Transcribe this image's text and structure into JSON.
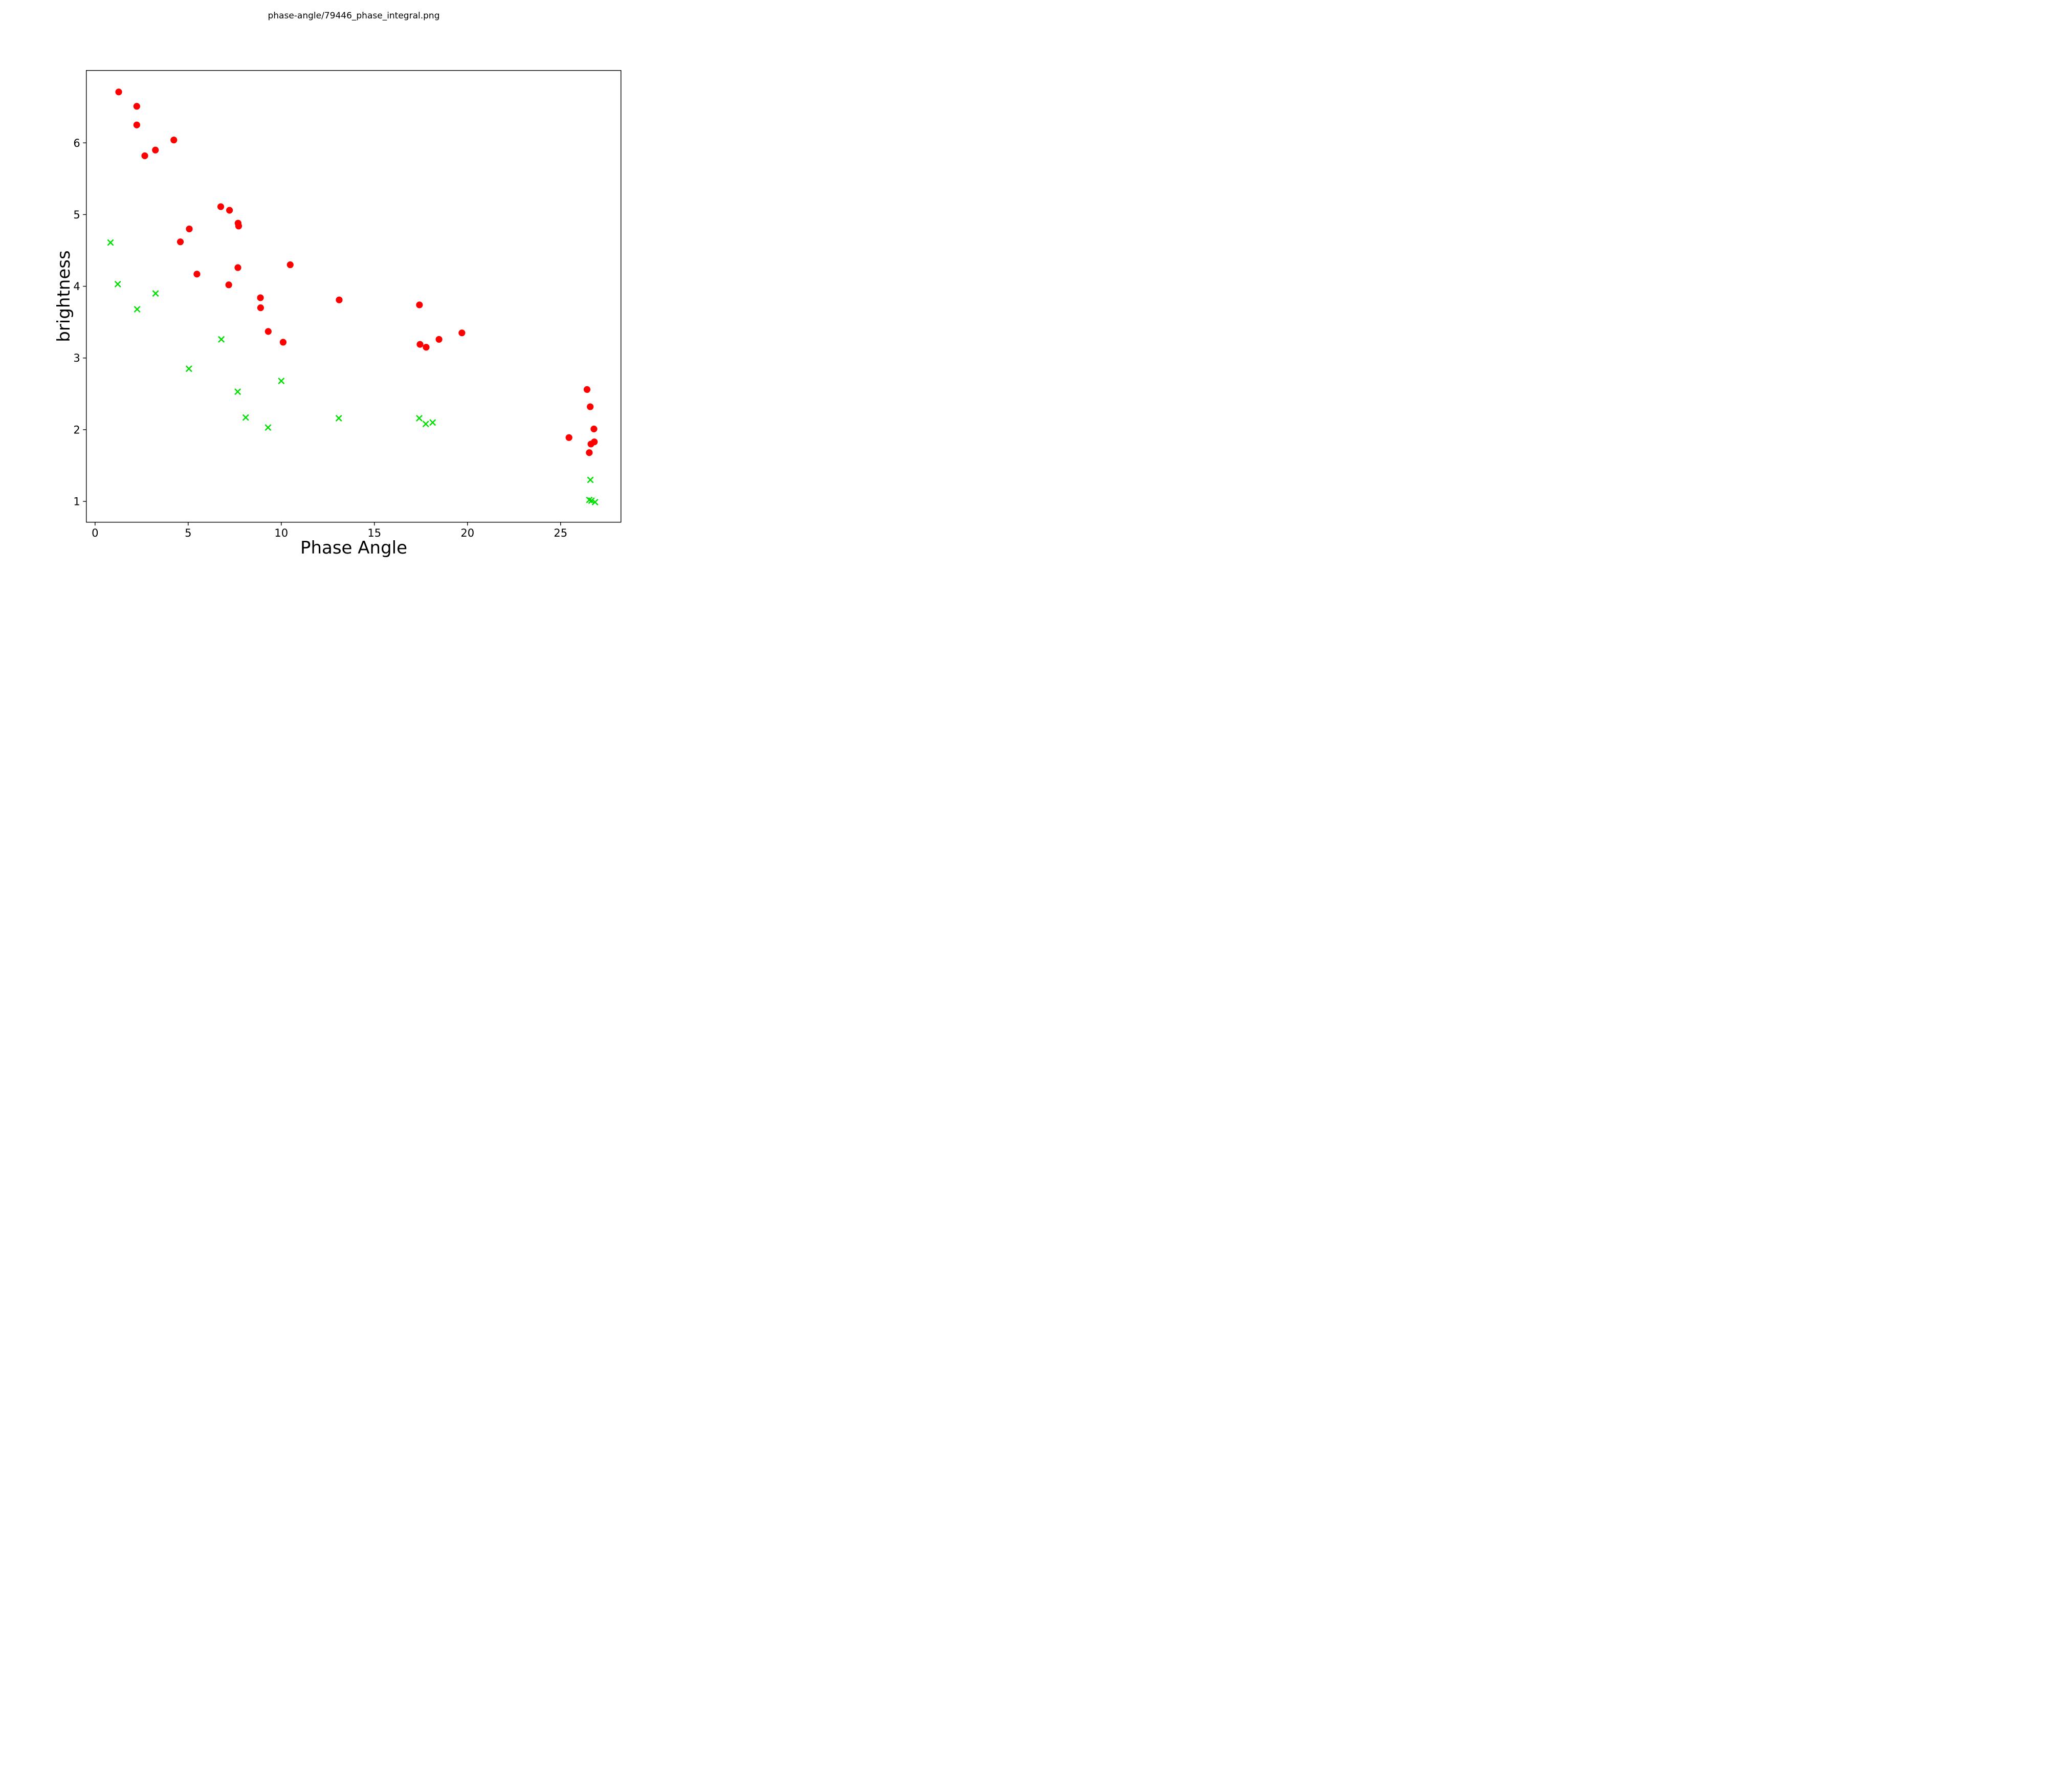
{
  "chart_data": {
    "type": "scatter",
    "title": "phase-angle/79446_phase_integral.png",
    "xlabel": "Phase Angle",
    "ylabel": "brightness",
    "xlim": [
      -0.47,
      28.24
    ],
    "ylim": [
      0.71,
      7.01
    ],
    "xticks": [
      0,
      5,
      10,
      15,
      20,
      25
    ],
    "yticks": [
      1,
      2,
      3,
      4,
      5,
      6
    ],
    "grid": false,
    "legend": null,
    "axis_color": "#000000",
    "background_color": "#ffffff",
    "series": [
      {
        "name": "red-circles",
        "marker": "circle",
        "color": "#ff0000",
        "marker_radius": 6.6,
        "points": [
          [
            1.27,
            6.71
          ],
          [
            2.24,
            6.51
          ],
          [
            2.24,
            6.25
          ],
          [
            4.23,
            6.04
          ],
          [
            3.24,
            5.9
          ],
          [
            2.67,
            5.82
          ],
          [
            6.75,
            5.11
          ],
          [
            7.22,
            5.06
          ],
          [
            7.68,
            4.88
          ],
          [
            7.71,
            4.84
          ],
          [
            5.06,
            4.8
          ],
          [
            4.58,
            4.62
          ],
          [
            7.67,
            4.26
          ],
          [
            10.48,
            4.3
          ],
          [
            5.47,
            4.17
          ],
          [
            7.18,
            4.02
          ],
          [
            8.88,
            3.84
          ],
          [
            8.89,
            3.7
          ],
          [
            13.11,
            3.81
          ],
          [
            9.3,
            3.37
          ],
          [
            10.1,
            3.22
          ],
          [
            17.42,
            3.74
          ],
          [
            17.45,
            3.19
          ],
          [
            17.78,
            3.15
          ],
          [
            18.47,
            3.26
          ],
          [
            19.7,
            3.35
          ],
          [
            25.45,
            1.89
          ],
          [
            26.42,
            2.56
          ],
          [
            26.59,
            2.32
          ],
          [
            26.79,
            2.01
          ],
          [
            26.63,
            1.8
          ],
          [
            26.81,
            1.83
          ],
          [
            26.54,
            1.68
          ]
        ]
      },
      {
        "name": "green-crosses",
        "marker": "x",
        "color": "#00e000",
        "marker_half_size": 5.6,
        "marker_stroke": 2.5,
        "points": [
          [
            0.83,
            4.61
          ],
          [
            1.22,
            4.03
          ],
          [
            2.26,
            3.68
          ],
          [
            3.25,
            3.9
          ],
          [
            6.78,
            3.26
          ],
          [
            5.04,
            2.85
          ],
          [
            10.0,
            2.68
          ],
          [
            7.66,
            2.53
          ],
          [
            8.09,
            2.17
          ],
          [
            9.29,
            2.03
          ],
          [
            13.09,
            2.16
          ],
          [
            17.41,
            2.16
          ],
          [
            17.76,
            2.08
          ],
          [
            18.13,
            2.1
          ],
          [
            26.6,
            1.3
          ],
          [
            26.54,
            1.02
          ],
          [
            26.66,
            1.01
          ],
          [
            26.85,
            0.99
          ]
        ]
      }
    ]
  }
}
